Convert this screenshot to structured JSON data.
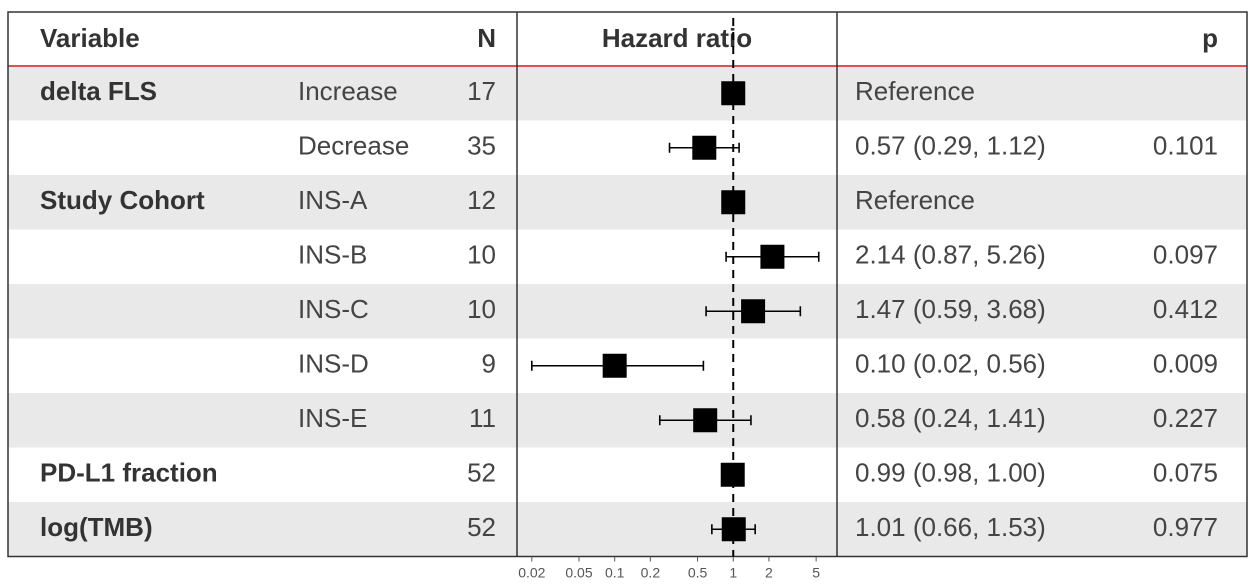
{
  "chart_data": {
    "type": "forest",
    "title": "",
    "headers": {
      "variable": "Variable",
      "n": "N",
      "plot": "Hazard ratio",
      "estimate": "",
      "p": "p"
    },
    "x_scale": "log",
    "xlim": [
      0.015,
      7.5
    ],
    "reference_line": 1,
    "x_ticks": [
      {
        "value": 0.02,
        "label": "0.02"
      },
      {
        "value": 0.05,
        "label": "0.05"
      },
      {
        "value": 0.1,
        "label": "0.1"
      },
      {
        "value": 0.2,
        "label": "0.2"
      },
      {
        "value": 0.5,
        "label": "0.5"
      },
      {
        "value": 1,
        "label": "1"
      },
      {
        "value": 2,
        "label": "2"
      },
      {
        "value": 5,
        "label": "5"
      }
    ],
    "rows": [
      {
        "variable": "delta FLS",
        "level": "Increase",
        "n": "17",
        "hr": 1.0,
        "lower": null,
        "upper": null,
        "estimate": "Reference",
        "p": ""
      },
      {
        "variable": "",
        "level": "Decrease",
        "n": "35",
        "hr": 0.57,
        "lower": 0.29,
        "upper": 1.12,
        "estimate": "0.57 (0.29, 1.12)",
        "p": "0.101"
      },
      {
        "variable": "Study Cohort",
        "level": "INS-A",
        "n": "12",
        "hr": 1.0,
        "lower": null,
        "upper": null,
        "estimate": "Reference",
        "p": ""
      },
      {
        "variable": "",
        "level": "INS-B",
        "n": "10",
        "hr": 2.14,
        "lower": 0.87,
        "upper": 5.26,
        "estimate": "2.14 (0.87, 5.26)",
        "p": "0.097"
      },
      {
        "variable": "",
        "level": "INS-C",
        "n": "10",
        "hr": 1.47,
        "lower": 0.59,
        "upper": 3.68,
        "estimate": "1.47 (0.59, 3.68)",
        "p": "0.412"
      },
      {
        "variable": "",
        "level": "INS-D",
        "n": "9",
        "hr": 0.1,
        "lower": 0.02,
        "upper": 0.56,
        "estimate": "0.10 (0.02, 0.56)",
        "p": "0.009"
      },
      {
        "variable": "",
        "level": "INS-E",
        "n": "11",
        "hr": 0.58,
        "lower": 0.24,
        "upper": 1.41,
        "estimate": "0.58 (0.24, 1.41)",
        "p": "0.227"
      },
      {
        "variable": "PD-L1 fraction",
        "level": "",
        "n": "52",
        "hr": 0.99,
        "lower": 0.98,
        "upper": 1.0,
        "estimate": "0.99 (0.98, 1.00)",
        "p": "0.075"
      },
      {
        "variable": "log(TMB)",
        "level": "",
        "n": "52",
        "hr": 1.01,
        "lower": 0.66,
        "upper": 1.53,
        "estimate": "1.01 (0.66, 1.53)",
        "p": "0.977"
      }
    ],
    "colors": {
      "stripe": "#e9e9e9",
      "header_rule": "#d9534f",
      "border": "#333333",
      "marker": "#000000"
    }
  }
}
